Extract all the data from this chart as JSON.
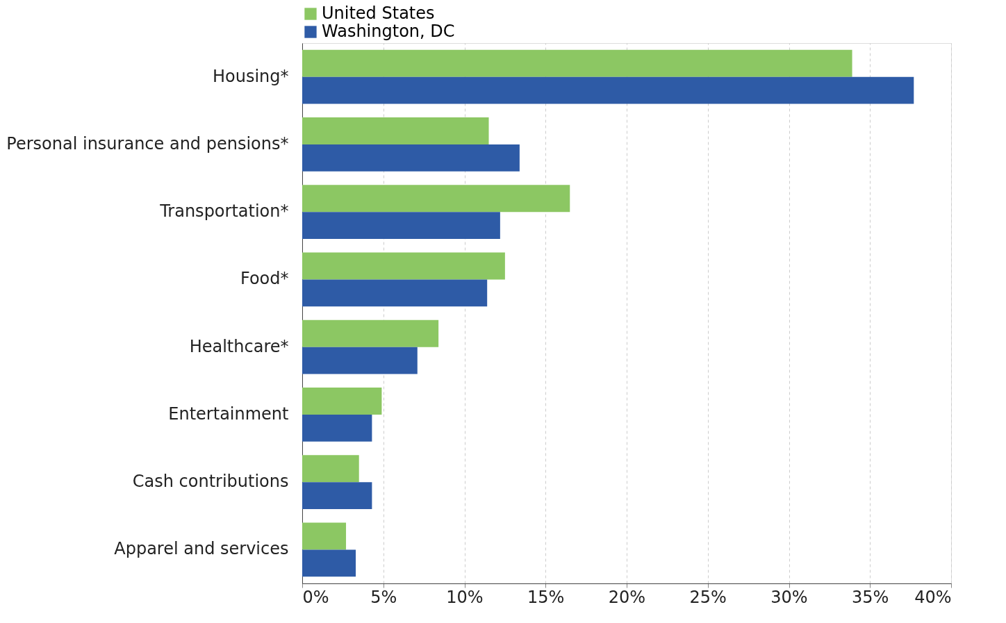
{
  "chart_data": {
    "type": "bar",
    "orientation": "horizontal",
    "categories": [
      "Housing*",
      "Personal insurance and pensions*",
      "Transportation*",
      "Food*",
      "Healthcare*",
      "Entertainment",
      "Cash contributions",
      "Apparel and services"
    ],
    "series": [
      {
        "name": "United States",
        "color": "#8cc763",
        "values": [
          33.9,
          11.5,
          16.5,
          12.5,
          8.4,
          4.9,
          3.5,
          2.7
        ]
      },
      {
        "name": "Washington, DC",
        "color": "#2e5ba6",
        "values": [
          37.7,
          13.4,
          12.2,
          11.4,
          7.1,
          4.3,
          4.3,
          3.3
        ]
      }
    ],
    "xlim": [
      0,
      40
    ],
    "xticks": [
      {
        "value": 0,
        "label": "0%"
      },
      {
        "value": 5,
        "label": "5%"
      },
      {
        "value": 10,
        "label": "10%"
      },
      {
        "value": 15,
        "label": "15%"
      },
      {
        "value": 20,
        "label": "20%"
      },
      {
        "value": 25,
        "label": "25%"
      },
      {
        "value": 30,
        "label": "30%"
      },
      {
        "value": 35,
        "label": "35%"
      },
      {
        "value": 40,
        "label": "40%"
      }
    ],
    "grid": "x",
    "legend": "top"
  }
}
